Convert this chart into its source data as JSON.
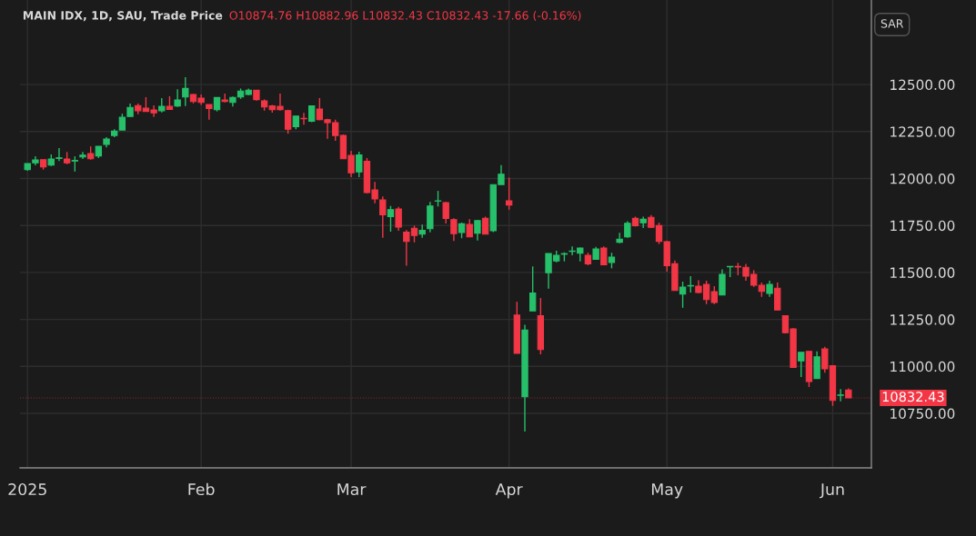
{
  "chart_data": {
    "type": "candlestick",
    "title": "MAIN IDX, 1D, SAU, Trade Price",
    "subtitle": "O10874.76 H10882.96 L10832.43 C10832.43 -17.66 (-0.16%)",
    "annotations": [
      "SAR"
    ],
    "categories": [
      "2025",
      null,
      null,
      null,
      null,
      null,
      null,
      null,
      null,
      null,
      null,
      null,
      null,
      null,
      null,
      null,
      null,
      null,
      null,
      null,
      null,
      null,
      "Feb",
      null,
      null,
      null,
      null,
      null,
      null,
      null,
      null,
      null,
      null,
      null,
      null,
      null,
      null,
      null,
      null,
      null,
      null,
      "Mar",
      null,
      null,
      null,
      null,
      null,
      null,
      null,
      null,
      null,
      null,
      null,
      null,
      null,
      null,
      null,
      null,
      null,
      null,
      null,
      "Apr",
      null,
      null,
      null,
      null,
      null,
      null,
      null,
      null,
      null,
      null,
      null,
      null,
      null,
      null,
      null,
      null,
      null,
      null,
      null,
      "May",
      null,
      null,
      null,
      null,
      null,
      null,
      null,
      null,
      null,
      null,
      null,
      null,
      null,
      null,
      null,
      null,
      null,
      null,
      null,
      null,
      "Jun",
      null,
      null
    ],
    "ohlc": [
      [
        12047,
        12080,
        12041,
        12080
      ],
      [
        12083,
        12118,
        12070,
        12099
      ],
      [
        12100,
        12100,
        12047,
        12062
      ],
      [
        12071,
        12128,
        12066,
        12104
      ],
      [
        12107,
        12162,
        12093,
        12110
      ],
      [
        12104,
        12141,
        12076,
        12083
      ],
      [
        12093,
        12118,
        12037,
        12096
      ],
      [
        12115,
        12141,
        12104,
        12124
      ],
      [
        12133,
        12171,
        12100,
        12105
      ],
      [
        12120,
        12171,
        12109,
        12171
      ],
      [
        12182,
        12220,
        12166,
        12210
      ],
      [
        12229,
        12262,
        12220,
        12252
      ],
      [
        12258,
        12345,
        12258,
        12326
      ],
      [
        12330,
        12399,
        12330,
        12378
      ],
      [
        12388,
        12399,
        12342,
        12361
      ],
      [
        12374,
        12433,
        12357,
        12357
      ],
      [
        12365,
        12389,
        12328,
        12349
      ],
      [
        12361,
        12428,
        12352,
        12384
      ],
      [
        12384,
        12438,
        12368,
        12368
      ],
      [
        12386,
        12475,
        12381,
        12418
      ],
      [
        12434,
        12539,
        12386,
        12479
      ],
      [
        12447,
        12450,
        12400,
        12410
      ],
      [
        12428,
        12447,
        12392,
        12405
      ],
      [
        12394,
        12394,
        12313,
        12373
      ],
      [
        12366,
        12431,
        12357,
        12431
      ],
      [
        12418,
        12452,
        12405,
        12410
      ],
      [
        12405,
        12436,
        12383,
        12431
      ],
      [
        12434,
        12479,
        12424,
        12465
      ],
      [
        12447,
        12479,
        12443,
        12470
      ],
      [
        12470,
        12470,
        12415,
        12420
      ],
      [
        12413,
        12421,
        12361,
        12381
      ],
      [
        12386,
        12392,
        12350,
        12366
      ],
      [
        12384,
        12452,
        12361,
        12366
      ],
      [
        12361,
        12366,
        12238,
        12262
      ],
      [
        12276,
        12332,
        12262,
        12332
      ],
      [
        12320,
        12349,
        12286,
        12318
      ],
      [
        12305,
        12389,
        12300,
        12386
      ],
      [
        12370,
        12428,
        12310,
        12313
      ],
      [
        12313,
        12318,
        12211,
        12297
      ],
      [
        12297,
        12313,
        12200,
        12229
      ],
      [
        12229,
        12234,
        12105,
        12105
      ],
      [
        12123,
        12147,
        12007,
        12030
      ],
      [
        12035,
        12142,
        12007,
        12125
      ],
      [
        12091,
        12109,
        11921,
        11925
      ],
      [
        11939,
        11982,
        11868,
        11892
      ],
      [
        11886,
        11905,
        11684,
        11807
      ],
      [
        11797,
        11854,
        11717,
        11834
      ],
      [
        11838,
        11849,
        11722,
        11741
      ],
      [
        11715,
        11725,
        11536,
        11665
      ],
      [
        11735,
        11749,
        11660,
        11697
      ],
      [
        11704,
        11754,
        11684,
        11724
      ],
      [
        11733,
        11876,
        11714,
        11854
      ],
      [
        11880,
        11934,
        11851,
        11881
      ],
      [
        11871,
        11876,
        11760,
        11788
      ],
      [
        11781,
        11789,
        11667,
        11706
      ],
      [
        11713,
        11765,
        11682,
        11759
      ],
      [
        11755,
        11783,
        11689,
        11689
      ],
      [
        11709,
        11776,
        11670,
        11776
      ],
      [
        11788,
        11797,
        11704,
        11704
      ],
      [
        11722,
        11967,
        11715,
        11967
      ],
      [
        11968,
        12071,
        11968,
        12023
      ],
      [
        11881,
        12005,
        11834,
        11859
      ],
      [
        11273,
        11344,
        11070,
        11070
      ],
      [
        10838,
        11222,
        10653,
        11193
      ],
      [
        11295,
        11532,
        11295,
        11391
      ],
      [
        11270,
        11364,
        11064,
        11090
      ],
      [
        11499,
        11601,
        11414,
        11601
      ],
      [
        11561,
        11615,
        11554,
        11591
      ],
      [
        11597,
        11607,
        11559,
        11600
      ],
      [
        11612,
        11639,
        11591,
        11614
      ],
      [
        11602,
        11633,
        11559,
        11630
      ],
      [
        11591,
        11605,
        11538,
        11546
      ],
      [
        11570,
        11636,
        11570,
        11625
      ],
      [
        11630,
        11639,
        11541,
        11541
      ],
      [
        11553,
        11605,
        11522,
        11582
      ],
      [
        11661,
        11711,
        11656,
        11677
      ],
      [
        11689,
        11773,
        11684,
        11762
      ],
      [
        11788,
        11797,
        11744,
        11749
      ],
      [
        11764,
        11797,
        11736,
        11783
      ],
      [
        11793,
        11805,
        11740,
        11740
      ],
      [
        11749,
        11765,
        11651,
        11665
      ],
      [
        11664,
        11669,
        11504,
        11536
      ],
      [
        11546,
        11564,
        11404,
        11404
      ],
      [
        11385,
        11451,
        11312,
        11422
      ],
      [
        11428,
        11480,
        11393,
        11430
      ],
      [
        11427,
        11459,
        11388,
        11393
      ],
      [
        11436,
        11456,
        11331,
        11356
      ],
      [
        11398,
        11427,
        11331,
        11340
      ],
      [
        11380,
        11517,
        11380,
        11490
      ],
      [
        11530,
        11532,
        11475,
        11532
      ],
      [
        11532,
        11551,
        11485,
        11529
      ],
      [
        11527,
        11546,
        11456,
        11480
      ],
      [
        11490,
        11512,
        11423,
        11432
      ],
      [
        11432,
        11446,
        11370,
        11399
      ],
      [
        11388,
        11456,
        11370,
        11436
      ],
      [
        11416,
        11446,
        11300,
        11300
      ],
      [
        11270,
        11270,
        11175,
        11180
      ],
      [
        11199,
        11203,
        10995,
        10995
      ],
      [
        11029,
        11075,
        10943,
        11075
      ],
      [
        11080,
        11080,
        10890,
        10919
      ],
      [
        10935,
        11080,
        10935,
        11051
      ],
      [
        11093,
        11104,
        10967,
        10987
      ],
      [
        11004,
        11007,
        10790,
        10819
      ],
      [
        10846,
        10880,
        10814,
        10848
      ],
      [
        10874.76,
        10882.96,
        10832.43,
        10832.43
      ]
    ],
    "colors": [
      "#26c06a",
      "#26c06a",
      "#f23645",
      "#26c06a",
      "#26c06a",
      "#f23645",
      "#26c06a",
      "#26c06a",
      "#f23645",
      "#26c06a",
      "#26c06a",
      "#26c06a",
      "#26c06a",
      "#26c06a",
      "#f23645",
      "#f23645",
      "#f23645",
      "#26c06a",
      "#f23645",
      "#26c06a",
      "#26c06a",
      "#f23645",
      "#f23645",
      "#f23645",
      "#26c06a",
      "#f23645",
      "#26c06a",
      "#26c06a",
      "#26c06a",
      "#f23645",
      "#f23645",
      "#f23645",
      "#f23645",
      "#f23645",
      "#26c06a",
      "#f23645",
      "#26c06a",
      "#f23645",
      "#f23645",
      "#f23645",
      "#f23645",
      "#f23645",
      "#26c06a",
      "#f23645",
      "#f23645",
      "#f23645",
      "#26c06a",
      "#f23645",
      "#f23645",
      "#f23645",
      "#26c06a",
      "#26c06a",
      "#26c06a",
      "#f23645",
      "#f23645",
      "#26c06a",
      "#f23645",
      "#26c06a",
      "#f23645",
      "#26c06a",
      "#26c06a",
      "#f23645",
      "#f23645",
      "#26c06a",
      "#26c06a",
      "#f23645",
      "#26c06a",
      "#26c06a",
      "#26c06a",
      "#26c06a",
      "#26c06a",
      "#f23645",
      "#26c06a",
      "#f23645",
      "#26c06a",
      "#26c06a",
      "#26c06a",
      "#f23645",
      "#26c06a",
      "#f23645",
      "#f23645",
      "#f23645",
      "#f23645",
      "#26c06a",
      "#26c06a",
      "#f23645",
      "#f23645",
      "#f23645",
      "#26c06a",
      "#26c06a",
      "#f23645",
      "#f23645",
      "#f23645",
      "#f23645",
      "#26c06a",
      "#f23645",
      "#f23645",
      "#f23645",
      "#26c06a",
      "#f23645",
      "#26c06a",
      "#f23645",
      "#f23645",
      "#26c06a",
      "#f23645"
    ],
    "ylim": [
      10460,
      12950
    ],
    "yticks": [
      {
        "value": 10750,
        "label": "10750.00"
      },
      {
        "value": 11000,
        "label": "11000.00"
      },
      {
        "value": 11250,
        "label": "11250.00"
      },
      {
        "value": 11500,
        "label": "11500.00"
      },
      {
        "value": 11750,
        "label": "11750.00"
      },
      {
        "value": 12000,
        "label": "12000.00"
      },
      {
        "value": 12250,
        "label": "12250.00"
      },
      {
        "value": 12500,
        "label": "12500.00"
      }
    ],
    "grid": true,
    "ref_lines": [
      {
        "axis": "y",
        "value": 10832.43,
        "label": "10832.43",
        "color": "#f23645",
        "line_style": "dotted"
      }
    ]
  }
}
